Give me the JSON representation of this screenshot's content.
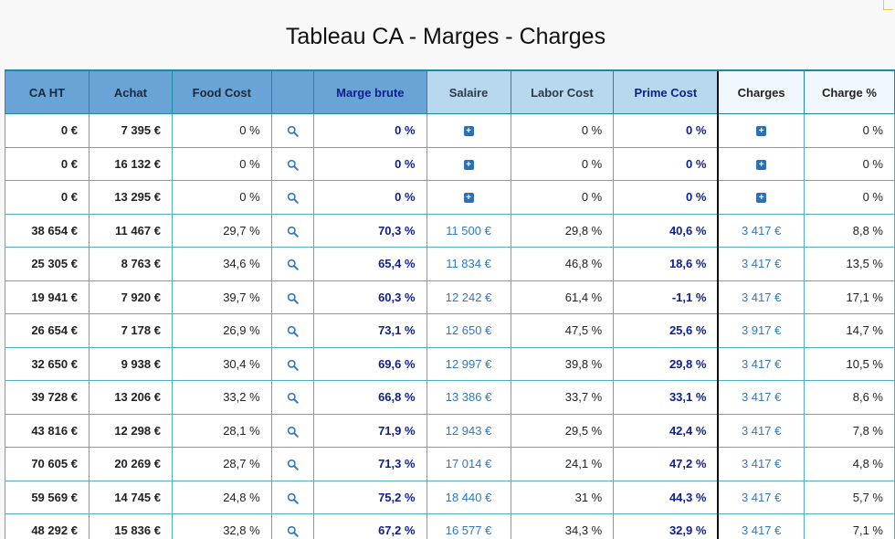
{
  "title": "Tableau CA - Marges - Charges",
  "headers": {
    "ca_ht": "CA HT",
    "achat": "Achat",
    "food_cost": "Food Cost",
    "search": "",
    "marge_brute": "Marge brute",
    "salaire": "Salaire",
    "labor_cost": "Labor Cost",
    "prime_cost": "Prime Cost",
    "charges": "Charges",
    "charge_pct": "Charge %"
  },
  "icons": {
    "search": "search-icon",
    "add": "plus-square-icon"
  },
  "colors": {
    "header_dark": "#6aa3d6",
    "header_light": "#b8d8ee",
    "navy_text": "#0d1f8f",
    "link_text": "#2f78c4",
    "grid_line": "#4fb0c4"
  },
  "rows": [
    {
      "ca": "0 €",
      "achat": "7 395 €",
      "food": "0 %",
      "marge": "0 %",
      "salaire": "",
      "labor": "0 %",
      "prime": "0 %",
      "charges": "",
      "charge_pct": "0 %"
    },
    {
      "ca": "0 €",
      "achat": "16 132 €",
      "food": "0 %",
      "marge": "0 %",
      "salaire": "",
      "labor": "0 %",
      "prime": "0 %",
      "charges": "",
      "charge_pct": "0 %"
    },
    {
      "ca": "0 €",
      "achat": "13 295 €",
      "food": "0 %",
      "marge": "0 %",
      "salaire": "",
      "labor": "0 %",
      "prime": "0 %",
      "charges": "",
      "charge_pct": "0 %"
    },
    {
      "ca": "38 654 €",
      "achat": "11 467 €",
      "food": "29,7 %",
      "marge": "70,3 %",
      "salaire": "11 500 €",
      "labor": "29,8 %",
      "prime": "40,6 %",
      "charges": "3 417 €",
      "charge_pct": "8,8 %"
    },
    {
      "ca": "25 305 €",
      "achat": "8 763 €",
      "food": "34,6 %",
      "marge": "65,4 %",
      "salaire": "11 834 €",
      "labor": "46,8 %",
      "prime": "18,6 %",
      "charges": "3 417 €",
      "charge_pct": "13,5 %"
    },
    {
      "ca": "19 941 €",
      "achat": "7 920 €",
      "food": "39,7 %",
      "marge": "60,3 %",
      "salaire": "12 242 €",
      "labor": "61,4 %",
      "prime": "-1,1 %",
      "charges": "3 417 €",
      "charge_pct": "17,1 %"
    },
    {
      "ca": "26 654 €",
      "achat": "7 178 €",
      "food": "26,9 %",
      "marge": "73,1 %",
      "salaire": "12 650 €",
      "labor": "47,5 %",
      "prime": "25,6 %",
      "charges": "3 917 €",
      "charge_pct": "14,7 %"
    },
    {
      "ca": "32 650 €",
      "achat": "9 938 €",
      "food": "30,4 %",
      "marge": "69,6 %",
      "salaire": "12 997 €",
      "labor": "39,8 %",
      "prime": "29,8 %",
      "charges": "3 417 €",
      "charge_pct": "10,5 %"
    },
    {
      "ca": "39 728 €",
      "achat": "13 206 €",
      "food": "33,2 %",
      "marge": "66,8 %",
      "salaire": "13 386 €",
      "labor": "33,7 %",
      "prime": "33,1 %",
      "charges": "3 417 €",
      "charge_pct": "8,6 %"
    },
    {
      "ca": "43 816 €",
      "achat": "12 298 €",
      "food": "28,1 %",
      "marge": "71,9 %",
      "salaire": "12 943 €",
      "labor": "29,5 %",
      "prime": "42,4 %",
      "charges": "3 417 €",
      "charge_pct": "7,8 %"
    },
    {
      "ca": "70 605 €",
      "achat": "20 269 €",
      "food": "28,7 %",
      "marge": "71,3 %",
      "salaire": "17 014 €",
      "labor": "24,1 %",
      "prime": "47,2 %",
      "charges": "3 417 €",
      "charge_pct": "4,8 %"
    },
    {
      "ca": "59 569 €",
      "achat": "14 745 €",
      "food": "24,8 %",
      "marge": "75,2 %",
      "salaire": "18 440 €",
      "labor": "31 %",
      "prime": "44,3 %",
      "charges": "3 417 €",
      "charge_pct": "5,7 %"
    },
    {
      "ca": "48 292 €",
      "achat": "15 836 €",
      "food": "32,8 %",
      "marge": "67,2 %",
      "salaire": "16 577 €",
      "labor": "34,3 %",
      "prime": "32,9 %",
      "charges": "3 417 €",
      "charge_pct": "7,1 %"
    }
  ]
}
